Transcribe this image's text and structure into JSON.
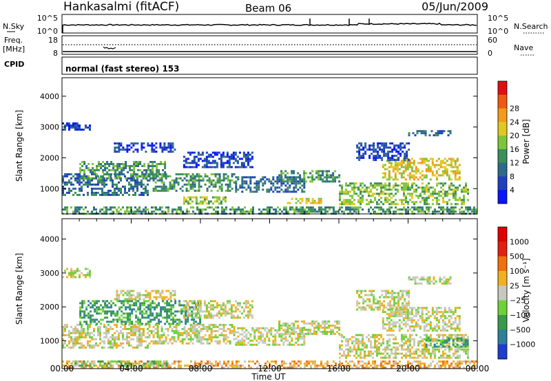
{
  "header": {
    "station": "Hankasalmi (fitACF)",
    "beam": "Beam 06",
    "date": "05/Jun/2009"
  },
  "noise_panel": {
    "left_label": "N.Sky",
    "right_label": "N.Search",
    "left_ticks": [
      "10^5",
      "10^0"
    ],
    "right_ticks": [
      "10^5",
      "10^0"
    ]
  },
  "freq_panel": {
    "left_label_1": "Freq.",
    "left_label_2": "[MHz]",
    "right_label": "Nave",
    "left_ticks": [
      "18",
      "8"
    ],
    "right_ticks": [
      "60",
      "0"
    ]
  },
  "cpid": {
    "label": "CPID",
    "value": "normal (fast stereo) 153"
  },
  "chart_data": [
    {
      "type": "heatmap",
      "panel": "power",
      "xlabel": "Time UT",
      "ylabel": "Slant Range [km]",
      "x_ticks": [
        "00:00",
        "04:00",
        "08:00",
        "12:00",
        "16:00",
        "20:00",
        "00:00"
      ],
      "y_ticks": [
        1000,
        2000,
        3000,
        4000
      ],
      "ylim": [
        180,
        4600
      ],
      "xlim_hours": [
        0,
        24
      ],
      "colorbar": {
        "label": "Power [dB]",
        "ticks": [
          "4",
          "8",
          "12",
          "16",
          "20",
          "24",
          "28"
        ],
        "colors": [
          "#0a14ff",
          "#1f3fbf",
          "#2e6a8a",
          "#3a8f5a",
          "#7fc43a",
          "#e0c820",
          "#f29a1a",
          "#f05a10",
          "#e01010"
        ]
      },
      "regions": [
        {
          "t0": 0.0,
          "t1": 24.0,
          "r0": 200,
          "r1": 420,
          "level": 3
        },
        {
          "t0": 0.0,
          "t1": 5.0,
          "r0": 800,
          "r1": 1500,
          "level": 2
        },
        {
          "t0": 0.0,
          "t1": 1.6,
          "r0": 2900,
          "r1": 3150,
          "level": 1
        },
        {
          "t0": 1.0,
          "t1": 6.0,
          "r0": 1300,
          "r1": 1900,
          "level": 3
        },
        {
          "t0": 3.0,
          "t1": 6.5,
          "r0": 2200,
          "r1": 2500,
          "level": 1
        },
        {
          "t0": 5.0,
          "t1": 10.0,
          "r0": 900,
          "r1": 1500,
          "level": 3
        },
        {
          "t0": 7.0,
          "t1": 11.0,
          "r0": 1700,
          "r1": 2200,
          "level": 1
        },
        {
          "t0": 10.0,
          "t1": 14.0,
          "r0": 900,
          "r1": 1400,
          "level": 2
        },
        {
          "t0": 12.5,
          "t1": 16.0,
          "r0": 1200,
          "r1": 1600,
          "level": 3
        },
        {
          "t0": 16.0,
          "t1": 23.5,
          "r0": 500,
          "r1": 1200,
          "level": 4
        },
        {
          "t0": 18.5,
          "t1": 23.0,
          "r0": 1300,
          "r1": 2000,
          "level": 5
        },
        {
          "t0": 17.0,
          "t1": 20.0,
          "r0": 1900,
          "r1": 2500,
          "level": 1
        },
        {
          "t0": 20.0,
          "t1": 22.5,
          "r0": 2700,
          "r1": 2900,
          "level": 2
        },
        {
          "t0": 7.0,
          "t1": 9.5,
          "r0": 500,
          "r1": 750,
          "level": 4
        },
        {
          "t0": 13.0,
          "t1": 15.0,
          "r0": 520,
          "r1": 700,
          "level": 5
        }
      ]
    },
    {
      "type": "heatmap",
      "panel": "velocity",
      "xlabel": "Time UT",
      "ylabel": "Slant Range [km]",
      "x_ticks": [
        "00:00",
        "04:00",
        "08:00",
        "12:00",
        "16:00",
        "20:00",
        "00:00"
      ],
      "y_ticks": [
        1000,
        2000,
        3000,
        4000
      ],
      "ylim": [
        180,
        4600
      ],
      "xlim_hours": [
        0,
        24
      ],
      "colorbar": {
        "label": "Velocity [m s⁻¹]",
        "ticks": [
          "1000",
          "500",
          "100",
          "25",
          "−25",
          "−100",
          "−500",
          "−1000"
        ],
        "colors": [
          "#1e3ccf",
          "#2e7f9a",
          "#3a9a4a",
          "#6fd13a",
          "#c8c8c0",
          "#f0b020",
          "#f07010",
          "#e02010",
          "#e00000"
        ]
      },
      "regions": [
        {
          "t0": 0.0,
          "t1": 24.0,
          "r0": 200,
          "r1": 420,
          "level": 5
        },
        {
          "t0": 0.0,
          "t1": 5.0,
          "r0": 800,
          "r1": 1500,
          "level": 4
        },
        {
          "t0": 0.0,
          "t1": 1.6,
          "r0": 2900,
          "r1": 3150,
          "level": 4
        },
        {
          "t0": 1.0,
          "t1": 8.0,
          "r0": 1500,
          "r1": 2200,
          "level": 2
        },
        {
          "t0": 3.0,
          "t1": 6.5,
          "r0": 2200,
          "r1": 2500,
          "level": 4
        },
        {
          "t0": 5.0,
          "t1": 10.0,
          "r0": 900,
          "r1": 1500,
          "level": 4
        },
        {
          "t0": 7.0,
          "t1": 11.0,
          "r0": 1700,
          "r1": 2200,
          "level": 4
        },
        {
          "t0": 10.0,
          "t1": 14.0,
          "r0": 900,
          "r1": 1400,
          "level": 4
        },
        {
          "t0": 12.5,
          "t1": 16.0,
          "r0": 1200,
          "r1": 1600,
          "level": 4
        },
        {
          "t0": 16.0,
          "t1": 23.5,
          "r0": 500,
          "r1": 1200,
          "level": 4
        },
        {
          "t0": 18.5,
          "t1": 23.0,
          "r0": 1300,
          "r1": 2000,
          "level": 4
        },
        {
          "t0": 17.0,
          "t1": 20.0,
          "r0": 1900,
          "r1": 2500,
          "level": 4
        },
        {
          "t0": 20.0,
          "t1": 22.5,
          "r0": 2700,
          "r1": 2900,
          "level": 4
        },
        {
          "t0": 21.0,
          "t1": 23.5,
          "r0": 800,
          "r1": 1100,
          "level": 2
        },
        {
          "t0": 0.5,
          "t1": 6.0,
          "r0": 250,
          "r1": 420,
          "level": 3
        }
      ]
    }
  ]
}
